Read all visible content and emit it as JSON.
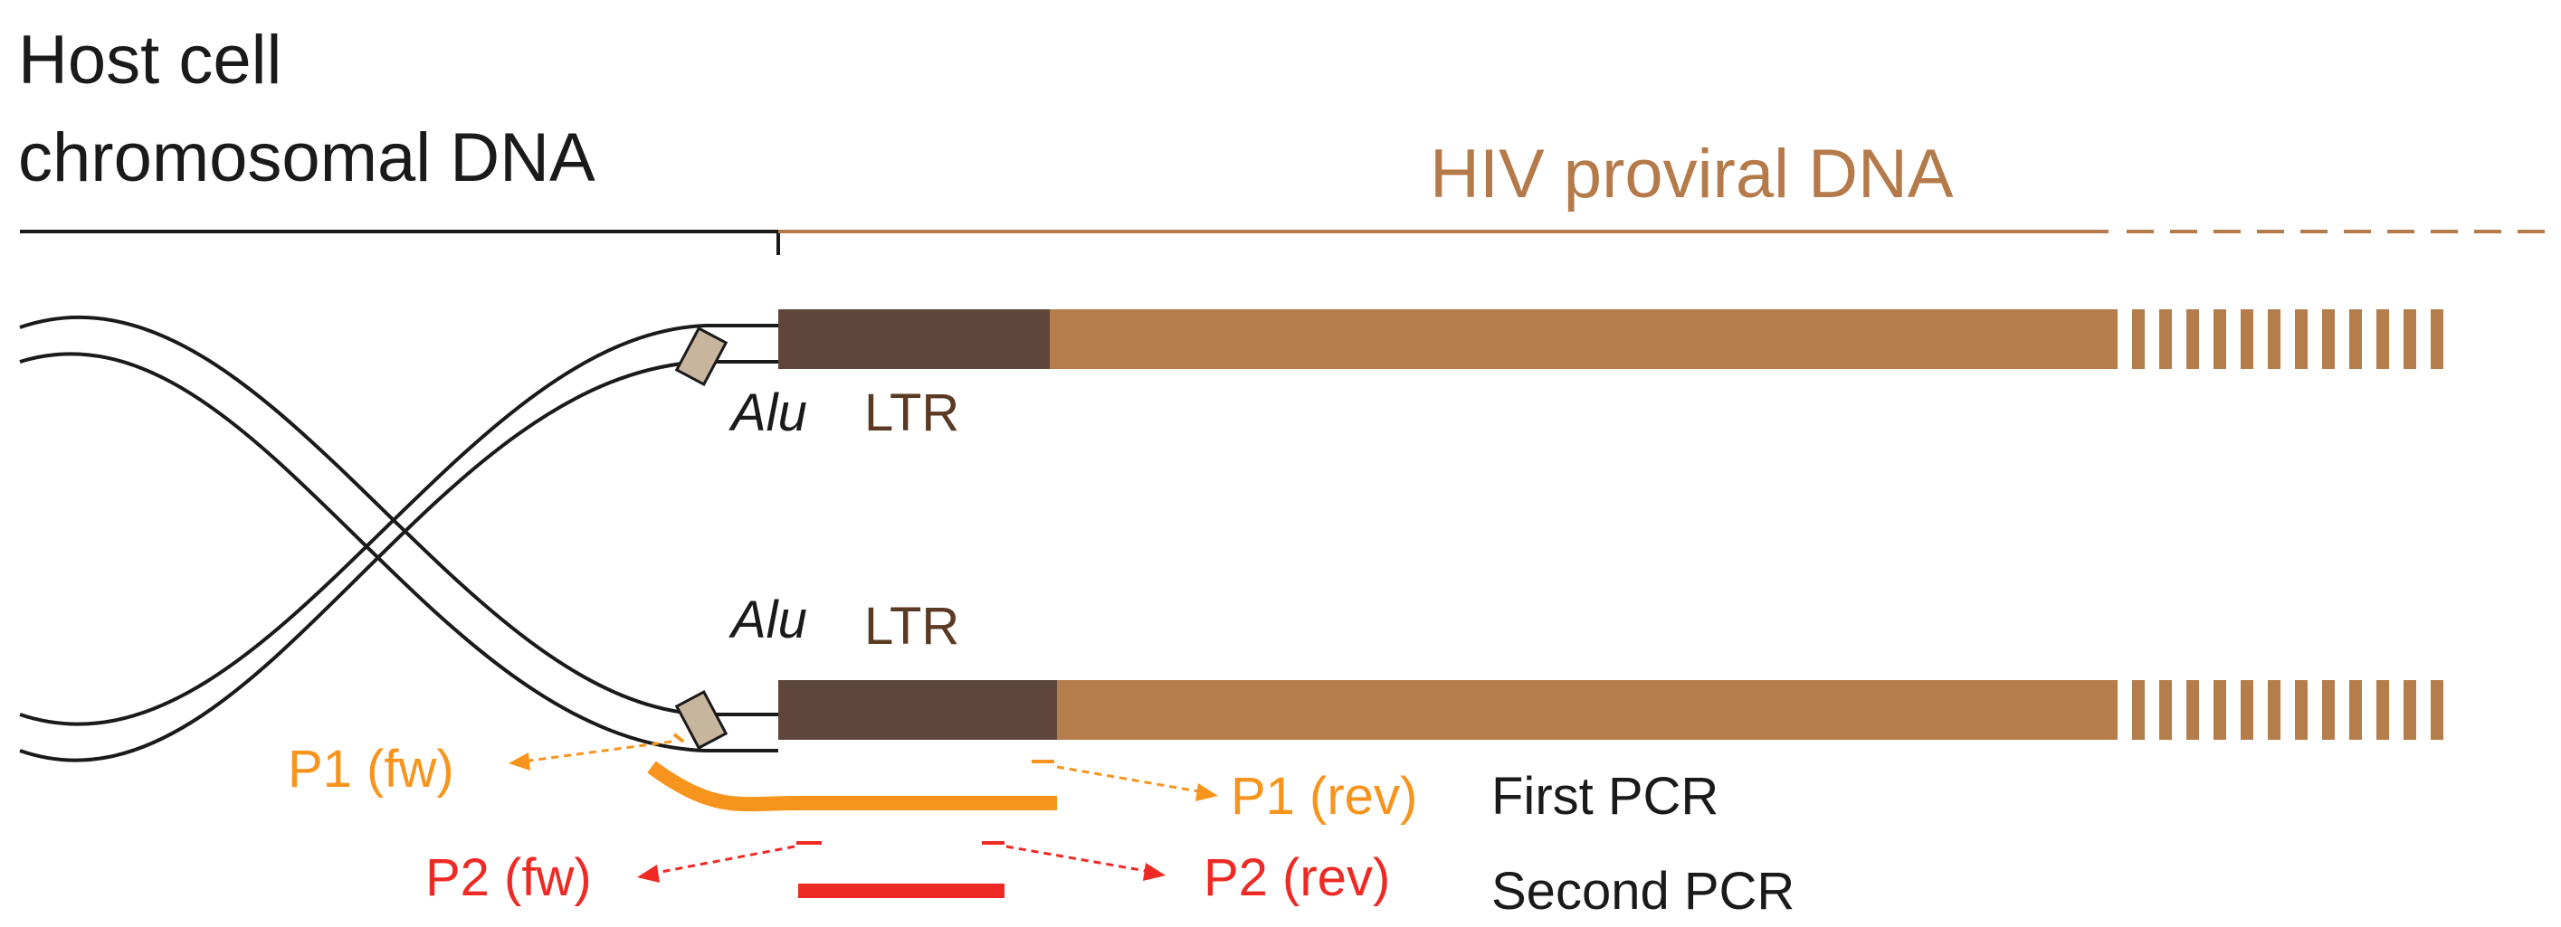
{
  "labels": {
    "host_line1": "Host cell",
    "host_line2": "chromosomal DNA",
    "hiv": "HIV proviral DNA",
    "alu_top": "Alu",
    "ltr_top": "LTR",
    "alu_bottom": "Alu",
    "ltr_bottom": "LTR",
    "p1_fw": "P1 (fw)",
    "p1_rev": "P1 (rev)",
    "p2_fw": "P2 (fw)",
    "p2_rev": "P2 (rev)",
    "first_pcr": "First PCR",
    "second_pcr": "Second PCR"
  },
  "colors": {
    "host": "#1a1a1a",
    "hiv_text": "#b57a4a",
    "hiv_body": "#b57d4c",
    "ltr_block": "#5e463a",
    "alu_block": "#c8b59e",
    "ltr_text": "#5a3a22",
    "p1": "#f7941d",
    "p2": "#ee2a24"
  }
}
